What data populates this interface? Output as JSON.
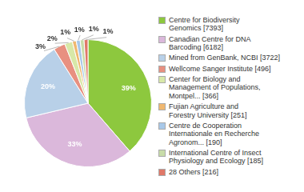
{
  "chart_data": {
    "type": "pie",
    "categories": [
      "Centre for Biodiversity\nGenomics [7393]",
      "Canadian Centre for DNA\nBarcoding [6182]",
      "Mined from GenBank, NCBI [3722]",
      "Wellcome Sanger Institute [496]",
      "Center for Biology and\nManagement of Populations,\nMontpel... [366]",
      "Fujian Agriculture and\nForestry University [251]",
      "Centre de Cooperation\nInternationale en Recherche\nAgronom... [190]",
      "International Centre of Insect\nPhysiology and Ecology [185]",
      "28 Others [216]"
    ],
    "values": [
      39,
      33,
      20,
      3,
      2,
      1,
      1,
      1,
      1
    ],
    "value_labels": [
      "39%",
      "33%",
      "20%",
      "3%",
      "2%",
      "1%",
      "1%",
      "1%",
      "1%"
    ],
    "colors": [
      "#8dc83e",
      "#dbb8db",
      "#b8d0e8",
      "#e89080",
      "#d8e8a8",
      "#f0b870",
      "#a8c8e8",
      "#c8dca8",
      "#e07868"
    ],
    "data_labels": true,
    "legend": "right"
  }
}
